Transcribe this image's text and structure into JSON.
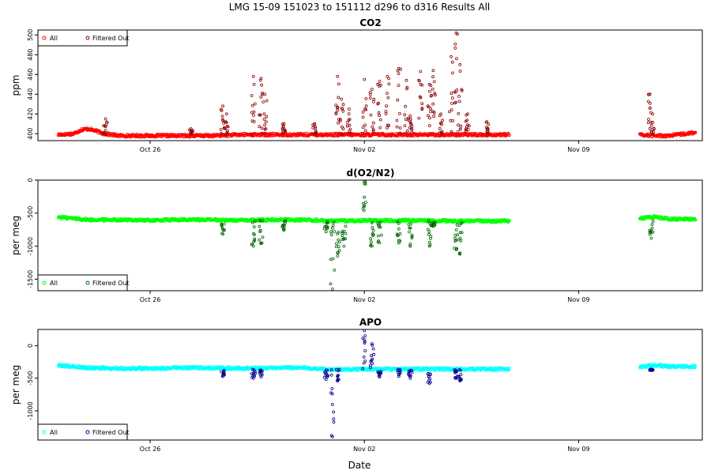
{
  "figure": {
    "title": "LMG   15-09    151023 to 151112    d296 to d316   Results All",
    "xlabel": "Date"
  },
  "chart_data": [
    {
      "type": "scatter",
      "title": "CO2",
      "xlabel": "Date",
      "ylabel": "ppm",
      "x_ticks": [
        "Oct 26",
        "Nov 02",
        "Nov 09"
      ],
      "y_ticks": [
        400,
        420,
        440,
        460,
        480,
        500
      ],
      "ylim": [
        393,
        505
      ],
      "xlim": [
        "2015-10-22T08:00",
        "2015-11-13T01:00"
      ],
      "legend": {
        "position": "top-left",
        "items": [
          "All",
          "Filtered Out"
        ]
      },
      "series": [
        {
          "name": "All",
          "color": "#ff0000",
          "baseline_points": [
            [
              "2015-10-23T00:00",
              399
            ],
            [
              "2015-10-23T12:00",
              400
            ],
            [
              "2015-10-23T18:00",
              404
            ],
            [
              "2015-10-24T00:00",
              405
            ],
            [
              "2015-10-24T12:00",
              400
            ],
            [
              "2015-10-25T00:00",
              398
            ],
            [
              "2015-10-26T00:00",
              398
            ],
            [
              "2015-10-27T00:00",
              398
            ],
            [
              "2015-10-28T00:00",
              398
            ],
            [
              "2015-10-29T00:00",
              399
            ],
            [
              "2015-10-30T00:00",
              399
            ],
            [
              "2015-10-31T00:00",
              399
            ],
            [
              "2015-11-01T00:00",
              399
            ],
            [
              "2015-11-02T00:00",
              399
            ],
            [
              "2015-11-03T00:00",
              399
            ],
            [
              "2015-11-04T00:00",
              399
            ],
            [
              "2015-11-05T00:00",
              399
            ],
            [
              "2015-11-06T00:00",
              399
            ],
            [
              "2015-11-06T18:00",
              399
            ],
            [
              "2015-11-11T00:00",
              399
            ],
            [
              "2015-11-11T12:00",
              398
            ],
            [
              "2015-11-12T00:00",
              398
            ],
            [
              "2015-11-12T12:00",
              400
            ],
            [
              "2015-11-12T20:00",
              401
            ]
          ]
        },
        {
          "name": "Filtered Out",
          "color": "#8b0000",
          "spikes": [
            [
              "2015-10-24T13:00",
              415
            ],
            [
              "2015-10-27T08:00",
              405
            ],
            [
              "2015-10-28T09:00",
              428
            ],
            [
              "2015-10-28T12:00",
              420
            ],
            [
              "2015-10-29T09:00",
              458
            ],
            [
              "2015-10-29T15:00",
              456
            ],
            [
              "2015-10-29T18:00",
              440
            ],
            [
              "2015-10-30T09:00",
              410
            ],
            [
              "2015-10-31T09:00",
              410
            ],
            [
              "2015-11-01T03:00",
              458
            ],
            [
              "2015-11-01T06:00",
              435
            ],
            [
              "2015-11-01T12:00",
              425
            ],
            [
              "2015-11-02T00:00",
              455
            ],
            [
              "2015-11-02T06:00",
              445
            ],
            [
              "2015-11-02T12:00",
              453
            ],
            [
              "2015-11-02T18:00",
              458
            ],
            [
              "2015-11-03T03:00",
              466
            ],
            [
              "2015-11-03T09:00",
              454
            ],
            [
              "2015-11-03T12:00",
              418
            ],
            [
              "2015-11-03T20:00",
              463
            ],
            [
              "2015-11-04T03:00",
              450
            ],
            [
              "2015-11-04T06:00",
              464
            ],
            [
              "2015-11-04T12:00",
              420
            ],
            [
              "2015-11-04T20:00",
              478
            ],
            [
              "2015-11-05T00:00",
              502
            ],
            [
              "2015-11-05T03:00",
              470
            ],
            [
              "2015-11-05T09:00",
              420
            ],
            [
              "2015-11-06T00:00",
              412
            ],
            [
              "2015-11-11T08:00",
              440
            ],
            [
              "2015-11-11T10:00",
              420
            ]
          ]
        }
      ]
    },
    {
      "type": "scatter",
      "title": "d(O2/N2)",
      "xlabel": "Date",
      "ylabel": "per meg",
      "x_ticks": [
        "Oct 26",
        "Nov 02",
        "Nov 09"
      ],
      "y_ticks": [
        0,
        -500,
        -1000,
        -1500
      ],
      "ylim": [
        -1675,
        0
      ],
      "xlim": [
        "2015-10-22T08:00",
        "2015-11-13T01:00"
      ],
      "legend": {
        "position": "bottom-left",
        "items": [
          "All",
          "Filtered Out"
        ]
      },
      "series": [
        {
          "name": "All",
          "color": "#00ff00",
          "baseline_points": [
            [
              "2015-10-23T00:00",
              -560
            ],
            [
              "2015-10-24T00:00",
              -600
            ],
            [
              "2015-10-25T00:00",
              -600
            ],
            [
              "2015-10-26T00:00",
              -610
            ],
            [
              "2015-10-27T00:00",
              -600
            ],
            [
              "2015-10-28T00:00",
              -600
            ],
            [
              "2015-10-29T00:00",
              -610
            ],
            [
              "2015-10-30T00:00",
              -600
            ],
            [
              "2015-10-31T00:00",
              -600
            ],
            [
              "2015-11-01T00:00",
              -620
            ],
            [
              "2015-11-02T00:00",
              -610
            ],
            [
              "2015-11-03T00:00",
              -610
            ],
            [
              "2015-11-04T00:00",
              -610
            ],
            [
              "2015-11-05T00:00",
              -620
            ],
            [
              "2015-11-06T00:00",
              -620
            ],
            [
              "2015-11-06T18:00",
              -620
            ],
            [
              "2015-11-11T00:00",
              -580
            ],
            [
              "2015-11-11T12:00",
              -560
            ],
            [
              "2015-11-12T00:00",
              -590
            ],
            [
              "2015-11-12T20:00",
              -590
            ]
          ]
        },
        {
          "name": "Filtered Out",
          "color": "#006400",
          "spikes": [
            [
              "2015-10-28T09:00",
              -820
            ],
            [
              "2015-10-29T09:00",
              -1000
            ],
            [
              "2015-10-29T15:00",
              -960
            ],
            [
              "2015-10-30T09:00",
              -760
            ],
            [
              "2015-10-31T18:00",
              -780
            ],
            [
              "2015-11-01T03:00",
              -1150
            ],
            [
              "2015-11-01T08:00",
              -1000
            ],
            [
              "2015-11-02T00:00",
              -20
            ],
            [
              "2015-11-02T06:00",
              -1000
            ],
            [
              "2015-11-02T12:00",
              -950
            ],
            [
              "2015-11-03T03:00",
              -950
            ],
            [
              "2015-11-03T12:00",
              -1000
            ],
            [
              "2015-11-04T03:00",
              -1000
            ],
            [
              "2015-11-04T06:00",
              -700
            ],
            [
              "2015-11-05T00:00",
              -1050
            ],
            [
              "2015-11-05T03:00",
              -1120
            ],
            [
              "2015-11-11T09:00",
              -880
            ],
            [
              "2015-10-31T23:00",
              -1650
            ]
          ]
        }
      ]
    },
    {
      "type": "scatter",
      "title": "APO",
      "xlabel": "Date",
      "ylabel": "per meg",
      "x_ticks": [
        "Oct 26",
        "Nov 02",
        "Nov 09"
      ],
      "y_ticks": [
        0,
        -500,
        -1000
      ],
      "ylim": [
        -1450,
        250
      ],
      "xlim": [
        "2015-10-22T08:00",
        "2015-11-13T01:00"
      ],
      "legend": {
        "position": "bottom-left",
        "items": [
          "All",
          "Filtered Out"
        ]
      },
      "series": [
        {
          "name": "All",
          "color": "#00ffff",
          "baseline_points": [
            [
              "2015-10-23T00:00",
              -300
            ],
            [
              "2015-10-24T00:00",
              -340
            ],
            [
              "2015-10-25T00:00",
              -350
            ],
            [
              "2015-10-26T00:00",
              -350
            ],
            [
              "2015-10-27T00:00",
              -340
            ],
            [
              "2015-10-28T00:00",
              -340
            ],
            [
              "2015-10-29T00:00",
              -350
            ],
            [
              "2015-10-30T00:00",
              -340
            ],
            [
              "2015-10-31T00:00",
              -340
            ],
            [
              "2015-11-01T00:00",
              -370
            ],
            [
              "2015-11-02T00:00",
              -360
            ],
            [
              "2015-11-03T00:00",
              -360
            ],
            [
              "2015-11-04T00:00",
              -360
            ],
            [
              "2015-11-05T00:00",
              -360
            ],
            [
              "2015-11-06T00:00",
              -360
            ],
            [
              "2015-11-06T18:00",
              -360
            ],
            [
              "2015-11-11T00:00",
              -330
            ],
            [
              "2015-11-11T12:00",
              -300
            ],
            [
              "2015-11-12T00:00",
              -320
            ],
            [
              "2015-11-12T20:00",
              -320
            ]
          ]
        },
        {
          "name": "Filtered Out",
          "color": "#00008b",
          "spikes": [
            [
              "2015-10-28T09:00",
              -470
            ],
            [
              "2015-10-29T09:00",
              -500
            ],
            [
              "2015-10-29T15:00",
              -480
            ],
            [
              "2015-10-31T18:00",
              -520
            ],
            [
              "2015-11-01T03:00",
              -540
            ],
            [
              "2015-11-02T00:00",
              230
            ],
            [
              "2015-11-02T06:00",
              30
            ],
            [
              "2015-11-02T12:00",
              -480
            ],
            [
              "2015-11-03T03:00",
              -470
            ],
            [
              "2015-11-03T12:00",
              -500
            ],
            [
              "2015-11-04T03:00",
              -580
            ],
            [
              "2015-11-05T00:00",
              -500
            ],
            [
              "2015-11-05T03:00",
              -540
            ],
            [
              "2015-11-11T09:00",
              -380
            ],
            [
              "2015-10-31T23:00",
              -1400
            ]
          ]
        }
      ]
    }
  ]
}
